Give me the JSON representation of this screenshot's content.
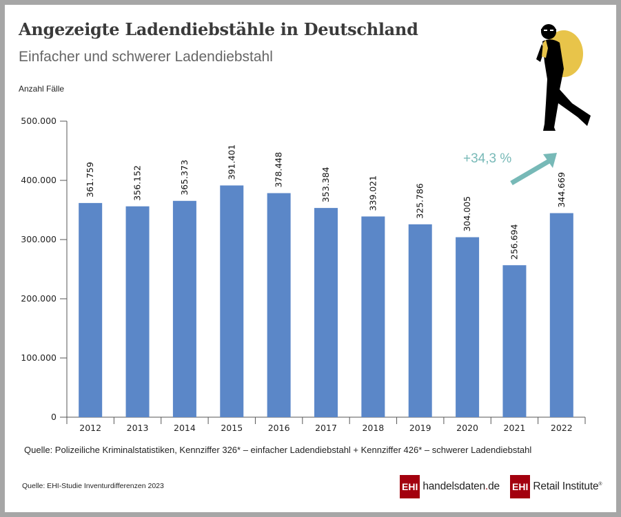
{
  "header": {
    "title": "Angezeigte Ladendiebstähle in Deutschland",
    "subtitle": "Einfacher und schwerer Ladendiebstahl"
  },
  "annotation": {
    "growth_label": "+34,3 %",
    "arrow_color": "#77b9b7"
  },
  "footer": {
    "source_main": "Quelle: Polizeiliche Kriminalstatistiken, Kennziffer 326* – einfacher Ladendiebstahl + Kennziffer 426* – schwerer Ladendiebstahl",
    "source_study": "Quelle: EHI-Studie Inventurdifferenzen 2023",
    "logo1_box": "EHI",
    "logo1_text_a": "handelsdaten",
    "logo1_text_dot": ".",
    "logo1_text_b": "de",
    "logo2_box": "EHI",
    "logo2_text": "Retail Institute",
    "logo2_reg": "®"
  },
  "colors": {
    "bar": "#5b87c8",
    "brand_red": "#a3000e",
    "thief_bag": "#e8c44a"
  },
  "chart_data": {
    "type": "bar",
    "title": "Angezeigte Ladendiebstähle in Deutschland",
    "subtitle": "Einfacher und schwerer Ladendiebstahl",
    "xlabel": "",
    "ylabel": "Anzahl Fälle",
    "ylim": [
      0,
      500000
    ],
    "yticks": [
      0,
      100000,
      200000,
      300000,
      400000,
      500000
    ],
    "ytick_labels": [
      "0",
      "100.000",
      "200.000",
      "300.000",
      "400.000",
      "500.000"
    ],
    "grid": false,
    "legend": "none",
    "categories": [
      "2012",
      "2013",
      "2014",
      "2015",
      "2016",
      "2017",
      "2018",
      "2019",
      "2020",
      "2021",
      "2022"
    ],
    "values": [
      361759,
      356152,
      365373,
      391401,
      378448,
      353384,
      339021,
      325786,
      304005,
      256694,
      344669
    ],
    "value_labels": [
      "361.759",
      "356.152",
      "365.373",
      "391.401",
      "378.448",
      "353.384",
      "339.021",
      "325.786",
      "304.005",
      "256.694",
      "344.669"
    ],
    "annotations": [
      {
        "text": "+34,3 %",
        "between": [
          "2021",
          "2022"
        ]
      }
    ]
  }
}
